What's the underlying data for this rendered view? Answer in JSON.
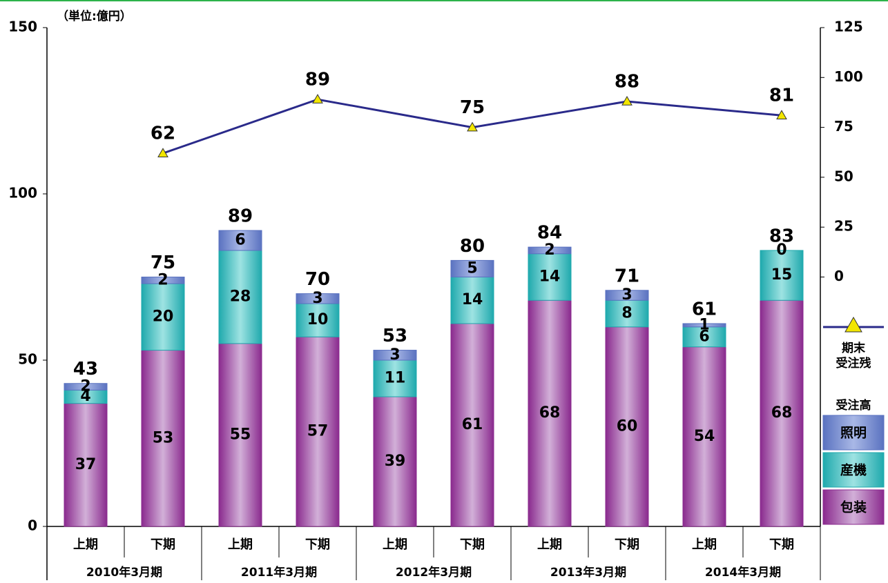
{
  "chart_data": {
    "type": "stacked-bar-line",
    "unit_label": "（単位:億円）",
    "categories": [
      "上期",
      "下期",
      "上期",
      "下期",
      "上期",
      "下期",
      "上期",
      "下期",
      "上期",
      "下期"
    ],
    "groups": [
      "2010年3月期",
      "2011年3月期",
      "2012年3月期",
      "2013年3月期",
      "2014年3月期"
    ],
    "series_heading": "受注高",
    "series": [
      {
        "name": "包装",
        "color": "#8a2a8e",
        "light": "#d2b0d8",
        "values": [
          37,
          53,
          55,
          57,
          39,
          61,
          68,
          60,
          54,
          68
        ]
      },
      {
        "name": "産機",
        "color": "#1fa9ad",
        "light": "#9ee3e2",
        "values": [
          4,
          20,
          28,
          10,
          11,
          14,
          14,
          8,
          6,
          15
        ]
      },
      {
        "name": "照明",
        "color": "#5a72c0",
        "light": "#a9b8e6",
        "values": [
          2,
          2,
          6,
          3,
          3,
          5,
          2,
          3,
          1,
          0
        ]
      }
    ],
    "totals": [
      43,
      75,
      89,
      70,
      53,
      80,
      84,
      71,
      61,
      83
    ],
    "line": {
      "name": [
        "期末",
        "受注残"
      ],
      "color": "#2a2a8a",
      "marker_color": "#f2e600",
      "axis": "y2",
      "values": [
        62,
        89,
        75,
        88,
        81
      ]
    },
    "ylim": [
      0,
      150
    ],
    "yticks": [
      0,
      50,
      100,
      150
    ],
    "y2lim": [
      -125,
      125
    ],
    "y2ticks": [
      0,
      25,
      50,
      75,
      100,
      125
    ]
  }
}
